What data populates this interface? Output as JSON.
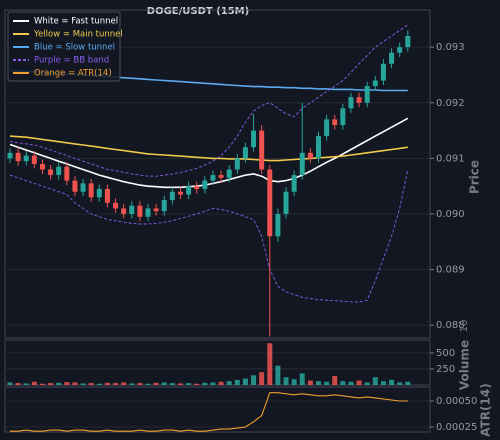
{
  "chart_data": [
    {
      "type": "candlestick",
      "title": "DOGE/USDT (15M)",
      "ylabel": "Price",
      "ylim": [
        0.08777,
        0.09356
      ],
      "yticks": [
        0.088,
        0.089,
        {
          "value": 0.09,
          "label": "0.090"
        },
        0.091,
        0.092,
        0.093
      ],
      "grid": true,
      "legend": "upper left",
      "up_color": "#26a69a",
      "down_color": "#ef5350",
      "open": [
        0.091,
        0.0911,
        0.09095,
        0.09105,
        0.0909,
        0.0908,
        0.0907,
        0.09085,
        0.0906,
        0.0904,
        0.09055,
        0.0903,
        0.09045,
        0.0902,
        0.0901,
        0.09,
        0.09015,
        0.08995,
        0.0901,
        0.09005,
        0.09025,
        0.0904,
        0.09035,
        0.0905,
        0.09045,
        0.0906,
        0.0907,
        0.09065,
        0.0908,
        0.091,
        0.0912,
        0.0915,
        0.0908,
        0.0896,
        0.09,
        0.0904,
        0.0907,
        0.0911,
        0.091,
        0.0914,
        0.0917,
        0.0916,
        0.0919,
        0.0921,
        0.092,
        0.0923,
        0.0924,
        0.0927,
        0.0929,
        0.093
      ],
      "high": [
        0.09118,
        0.0912,
        0.09113,
        0.09113,
        0.09098,
        0.09088,
        0.09093,
        0.09093,
        0.09068,
        0.09063,
        0.09063,
        0.09053,
        0.09053,
        0.09028,
        0.09018,
        0.09023,
        0.09023,
        0.09018,
        0.09018,
        0.09033,
        0.09048,
        0.09048,
        0.09058,
        0.09058,
        0.09068,
        0.09078,
        0.09078,
        0.09088,
        0.09108,
        0.09128,
        0.0918,
        0.0916,
        0.09088,
        0.0901,
        0.09048,
        0.09078,
        0.092,
        0.09118,
        0.09148,
        0.09178,
        0.09178,
        0.09198,
        0.09218,
        0.09218,
        0.09238,
        0.09248,
        0.09278,
        0.09298,
        0.09308,
        0.0933
      ],
      "low": [
        0.09092,
        0.09087,
        0.09087,
        0.09082,
        0.09072,
        0.09062,
        0.09062,
        0.09052,
        0.09032,
        0.09032,
        0.09022,
        0.09022,
        0.09012,
        0.09002,
        0.08992,
        0.08992,
        0.08987,
        0.08987,
        0.08997,
        0.08997,
        0.09017,
        0.09027,
        0.09027,
        0.09037,
        0.09037,
        0.09052,
        0.09057,
        0.09057,
        0.09072,
        0.09092,
        0.09112,
        0.09072,
        0.0878,
        0.0895,
        0.08992,
        0.09032,
        0.09062,
        0.09092,
        0.09092,
        0.09132,
        0.09152,
        0.09152,
        0.09182,
        0.09192,
        0.09192,
        0.09222,
        0.09232,
        0.09262,
        0.09282,
        0.09292
      ],
      "close": [
        0.0911,
        0.09095,
        0.09105,
        0.0909,
        0.0908,
        0.0907,
        0.09085,
        0.0906,
        0.0904,
        0.09055,
        0.0903,
        0.09045,
        0.0902,
        0.0901,
        0.09,
        0.09015,
        0.08995,
        0.0901,
        0.09005,
        0.09025,
        0.0904,
        0.09035,
        0.0905,
        0.09045,
        0.0906,
        0.0907,
        0.09065,
        0.0908,
        0.091,
        0.0912,
        0.0915,
        0.0908,
        0.0896,
        0.09,
        0.0904,
        0.0907,
        0.0911,
        0.091,
        0.0914,
        0.0917,
        0.0916,
        0.0919,
        0.0921,
        0.092,
        0.0923,
        0.0924,
        0.0927,
        0.0929,
        0.093,
        0.0932
      ],
      "lines": [
        {
          "name": "White = Fast tunnel",
          "color": "#ffffff",
          "values": [
            0.09125,
            0.0912,
            0.09115,
            0.0911,
            0.09105,
            0.091,
            0.09095,
            0.0909,
            0.09085,
            0.0908,
            0.09075,
            0.0907,
            0.09066,
            0.09062,
            0.09058,
            0.09055,
            0.09052,
            0.0905,
            0.09049,
            0.09048,
            0.09048,
            0.09048,
            0.09049,
            0.0905,
            0.09052,
            0.09055,
            0.09058,
            0.09062,
            0.09066,
            0.0907,
            0.09072,
            0.09068,
            0.0906,
            0.09058,
            0.0906,
            0.09064,
            0.0907,
            0.09077,
            0.09085,
            0.09093,
            0.091,
            0.09108,
            0.09116,
            0.09124,
            0.09132,
            0.0914,
            0.09148,
            0.09156,
            0.09164,
            0.09172
          ]
        },
        {
          "name": "Yellow = Main tunnel",
          "color": "#f0c94a",
          "values": [
            0.0914,
            0.09139,
            0.09138,
            0.09136,
            0.09134,
            0.09132,
            0.0913,
            0.09128,
            0.09126,
            0.09124,
            0.09122,
            0.0912,
            0.09118,
            0.09116,
            0.09114,
            0.09112,
            0.0911,
            0.09108,
            0.09107,
            0.09106,
            0.09105,
            0.09104,
            0.09103,
            0.09102,
            0.09101,
            0.091,
            0.091,
            0.09099,
            0.09099,
            0.09099,
            0.09098,
            0.09097,
            0.09096,
            0.09096,
            0.09097,
            0.09098,
            0.09099,
            0.091,
            0.09101,
            0.09102,
            0.09103,
            0.09104,
            0.09106,
            0.09108,
            0.0911,
            0.09112,
            0.09114,
            0.09116,
            0.09118,
            0.0912
          ]
        },
        {
          "name": "Blue = Slow tunnel",
          "color": "#5aaaf0",
          "values": [
            0.09258,
            0.09257,
            0.09256,
            0.09256,
            0.09255,
            0.09254,
            0.09253,
            0.09252,
            0.09251,
            0.0925,
            0.09249,
            0.09248,
            0.09247,
            0.09246,
            0.09245,
            0.09244,
            0.09243,
            0.09242,
            0.09241,
            0.0924,
            0.09239,
            0.09238,
            0.09237,
            0.09236,
            0.09235,
            0.09234,
            0.09233,
            0.09232,
            0.09231,
            0.0923,
            0.09229,
            0.09229,
            0.09228,
            0.09228,
            0.09227,
            0.09227,
            0.09226,
            0.09226,
            0.09225,
            0.09225,
            0.09224,
            0.09224,
            0.09224,
            0.09223,
            0.09223,
            0.09223,
            0.09222,
            0.09222,
            0.09222,
            0.09222
          ]
        },
        {
          "name": "Purple = BB band",
          "color": "#8a5cf0",
          "dashed": true,
          "upper": [
            0.0913,
            0.09128,
            0.09126,
            0.09124,
            0.0912,
            0.09115,
            0.0911,
            0.09105,
            0.091,
            0.09095,
            0.0909,
            0.09085,
            0.0908,
            0.09078,
            0.09075,
            0.09072,
            0.0907,
            0.09068,
            0.09068,
            0.0907,
            0.09072,
            0.09075,
            0.09078,
            0.09082,
            0.09088,
            0.09095,
            0.09105,
            0.0912,
            0.0914,
            0.09165,
            0.09185,
            0.09195,
            0.092,
            0.0919,
            0.0918,
            0.09175,
            0.0919,
            0.092,
            0.0921,
            0.0922,
            0.0923,
            0.0924,
            0.09255,
            0.0927,
            0.09285,
            0.093,
            0.0931,
            0.0932,
            0.0933,
            0.0934
          ],
          "lower": [
            0.0907,
            0.09065,
            0.0906,
            0.09055,
            0.0905,
            0.09045,
            0.0904,
            0.09035,
            0.0902,
            0.0901,
            0.09,
            0.08995,
            0.0899,
            0.08988,
            0.08985,
            0.08983,
            0.08982,
            0.08982,
            0.08983,
            0.08985,
            0.08988,
            0.08992,
            0.08996,
            0.09,
            0.09005,
            0.0901,
            0.09008,
            0.09005,
            0.09,
            0.08995,
            0.0899,
            0.0896,
            0.089,
            0.0887,
            0.0886,
            0.08855,
            0.0885,
            0.08848,
            0.08846,
            0.08845,
            0.08844,
            0.08843,
            0.08842,
            0.08842,
            0.08845,
            0.0888,
            0.0892,
            0.0896,
            0.0901,
            0.0908
          ]
        }
      ]
    },
    {
      "type": "volume",
      "ylabel": "Volume",
      "offset_text": "10",
      "ylim": [
        0,
        700
      ],
      "yticks": [
        250,
        500
      ],
      "values": [
        40,
        30,
        25,
        50,
        20,
        30,
        35,
        45,
        40,
        25,
        30,
        20,
        35,
        30,
        40,
        25,
        30,
        20,
        35,
        40,
        30,
        25,
        30,
        20,
        35,
        40,
        50,
        60,
        80,
        100,
        150,
        200,
        650,
        300,
        120,
        90,
        180,
        70,
        60,
        50,
        140,
        60,
        50,
        70,
        40,
        120,
        60,
        80,
        40,
        50
      ]
    },
    {
      "type": "line",
      "ylabel": "ATR(14)",
      "ylim": [
        0.000202,
        0.000635
      ],
      "yticks": [
        {
          "value": 0.00025,
          "label": "0.00025"
        },
        {
          "value": 0.0005,
          "label": "0.00050"
        }
      ],
      "series": [
        {
          "name": "Orange = ATR(14)",
          "color": "#f0a030",
          "values": [
            0.00021,
            0.00021,
            0.00022,
            0.00021,
            0.00021,
            0.00022,
            0.00022,
            0.00021,
            0.00022,
            0.00022,
            0.00021,
            0.00021,
            0.00022,
            0.00021,
            0.00021,
            0.00021,
            0.00022,
            0.00021,
            0.00021,
            0.00022,
            0.00022,
            0.00021,
            0.00022,
            0.00021,
            0.00021,
            0.00022,
            0.00023,
            0.00023,
            0.00024,
            0.00025,
            0.0003,
            0.00036,
            0.00058,
            0.00058,
            0.00057,
            0.00056,
            0.00057,
            0.00056,
            0.00055,
            0.00055,
            0.00056,
            0.00055,
            0.00054,
            0.00053,
            0.00054,
            0.00053,
            0.00052,
            0.00051,
            0.0005,
            0.0005
          ]
        }
      ]
    }
  ]
}
